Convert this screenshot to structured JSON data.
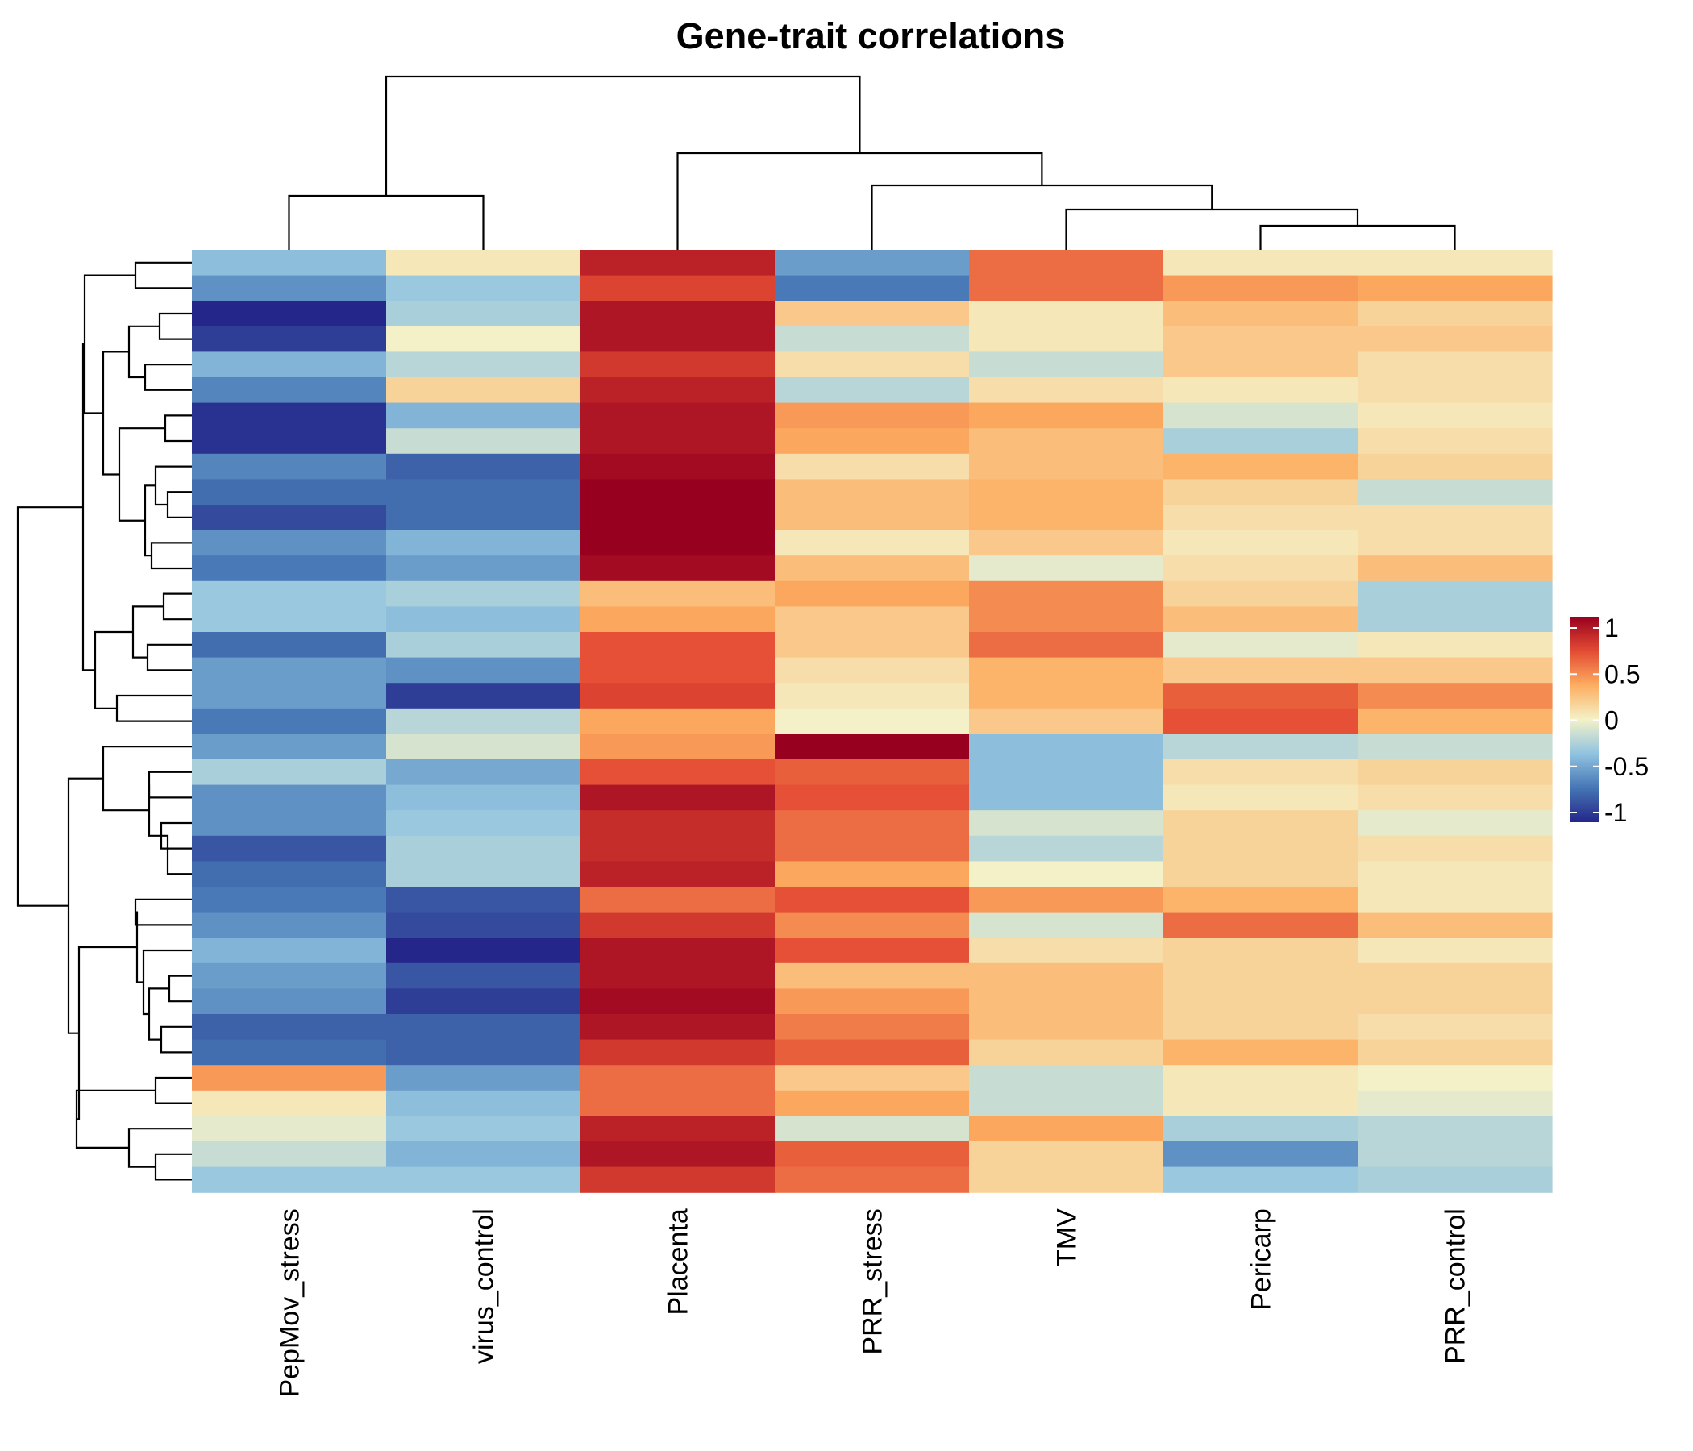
{
  "chart_data": {
    "type": "heatmap",
    "title": "Gene-trait correlations",
    "columns": [
      "PepMov_stress",
      "virus_control",
      "Placenta",
      "PRR_stress",
      "TMV",
      "Pericarp",
      "PRR_control"
    ],
    "values": [
      [
        -0.35,
        0.05,
        0.85,
        -0.5,
        0.55,
        0.05,
        0.05
      ],
      [
        -0.55,
        -0.3,
        0.7,
        -0.65,
        0.55,
        0.4,
        0.35
      ],
      [
        -1.0,
        -0.25,
        0.9,
        0.2,
        0.05,
        0.25,
        0.15
      ],
      [
        -0.9,
        0.0,
        0.9,
        -0.15,
        0.05,
        0.2,
        0.2
      ],
      [
        -0.4,
        -0.2,
        0.75,
        0.1,
        -0.15,
        0.2,
        0.1
      ],
      [
        -0.6,
        0.15,
        0.85,
        -0.2,
        0.1,
        0.05,
        0.1
      ],
      [
        -0.95,
        -0.4,
        0.9,
        0.4,
        0.35,
        -0.1,
        0.05
      ],
      [
        -0.95,
        -0.15,
        0.9,
        0.35,
        0.25,
        -0.25,
        0.1
      ],
      [
        -0.6,
        -0.75,
        0.95,
        0.1,
        0.25,
        0.3,
        0.15
      ],
      [
        -0.7,
        -0.7,
        1.0,
        0.25,
        0.3,
        0.15,
        -0.15
      ],
      [
        -0.85,
        -0.7,
        1.0,
        0.25,
        0.3,
        0.1,
        0.1
      ],
      [
        -0.55,
        -0.4,
        1.0,
        0.05,
        0.2,
        0.05,
        0.1
      ],
      [
        -0.65,
        -0.5,
        0.95,
        0.25,
        -0.05,
        0.1,
        0.25
      ],
      [
        -0.3,
        -0.25,
        0.25,
        0.35,
        0.45,
        0.15,
        -0.25
      ],
      [
        -0.3,
        -0.35,
        0.35,
        0.2,
        0.45,
        0.25,
        -0.25
      ],
      [
        -0.7,
        -0.25,
        0.65,
        0.2,
        0.55,
        -0.05,
        0.05
      ],
      [
        -0.5,
        -0.55,
        0.65,
        0.1,
        0.3,
        0.2,
        0.2
      ],
      [
        -0.5,
        -0.9,
        0.7,
        0.05,
        0.3,
        0.6,
        0.45
      ],
      [
        -0.65,
        -0.2,
        0.35,
        0.0,
        0.2,
        0.65,
        0.3
      ],
      [
        -0.5,
        -0.1,
        0.4,
        1.0,
        -0.35,
        -0.2,
        -0.15
      ],
      [
        -0.25,
        -0.45,
        0.65,
        0.6,
        -0.35,
        0.1,
        0.15
      ],
      [
        -0.55,
        -0.35,
        0.9,
        0.65,
        -0.35,
        0.05,
        0.1
      ],
      [
        -0.55,
        -0.3,
        0.8,
        0.55,
        -0.1,
        0.15,
        -0.05
      ],
      [
        -0.8,
        -0.25,
        0.8,
        0.55,
        -0.2,
        0.15,
        0.1
      ],
      [
        -0.7,
        -0.25,
        0.85,
        0.35,
        0.0,
        0.15,
        0.05
      ],
      [
        -0.65,
        -0.8,
        0.55,
        0.65,
        0.4,
        0.3,
        0.05
      ],
      [
        -0.55,
        -0.85,
        0.75,
        0.45,
        -0.1,
        0.55,
        0.25
      ],
      [
        -0.4,
        -1.0,
        0.9,
        0.65,
        0.1,
        0.15,
        0.05
      ],
      [
        -0.5,
        -0.8,
        0.9,
        0.25,
        0.25,
        0.15,
        0.15
      ],
      [
        -0.55,
        -0.9,
        0.95,
        0.4,
        0.25,
        0.15,
        0.15
      ],
      [
        -0.75,
        -0.75,
        0.9,
        0.5,
        0.25,
        0.15,
        0.1
      ],
      [
        -0.7,
        -0.75,
        0.75,
        0.6,
        0.15,
        0.3,
        0.15
      ],
      [
        0.4,
        -0.5,
        0.55,
        0.2,
        -0.15,
        0.05,
        0.0
      ],
      [
        0.05,
        -0.35,
        0.55,
        0.35,
        -0.15,
        0.05,
        -0.05
      ],
      [
        -0.05,
        -0.3,
        0.85,
        -0.1,
        0.35,
        -0.25,
        -0.2
      ],
      [
        -0.15,
        -0.4,
        0.9,
        0.6,
        0.15,
        -0.55,
        -0.2
      ],
      [
        -0.3,
        -0.3,
        0.75,
        0.55,
        0.15,
        -0.3,
        -0.25
      ]
    ],
    "color_scale": {
      "min": -1,
      "max": 1,
      "stops": [
        {
          "v": -1.0,
          "color": "#24268a"
        },
        {
          "v": -0.67,
          "color": "#4575b4"
        },
        {
          "v": -0.33,
          "color": "#91c4e0"
        },
        {
          "v": 0.0,
          "color": "#f4f1c8"
        },
        {
          "v": 0.33,
          "color": "#fdae61"
        },
        {
          "v": 0.67,
          "color": "#e34a33"
        },
        {
          "v": 1.0,
          "color": "#98001f"
        }
      ]
    },
    "legend": {
      "placement": "right",
      "ticks": [
        {
          "value": 1,
          "label": "1"
        },
        {
          "value": 0.5,
          "label": "0.5"
        },
        {
          "value": 0,
          "label": "0"
        },
        {
          "value": -0.5,
          "label": "-0.5"
        },
        {
          "value": -1,
          "label": "-1"
        }
      ]
    },
    "column_dendrogram": true,
    "row_dendrogram": true
  }
}
